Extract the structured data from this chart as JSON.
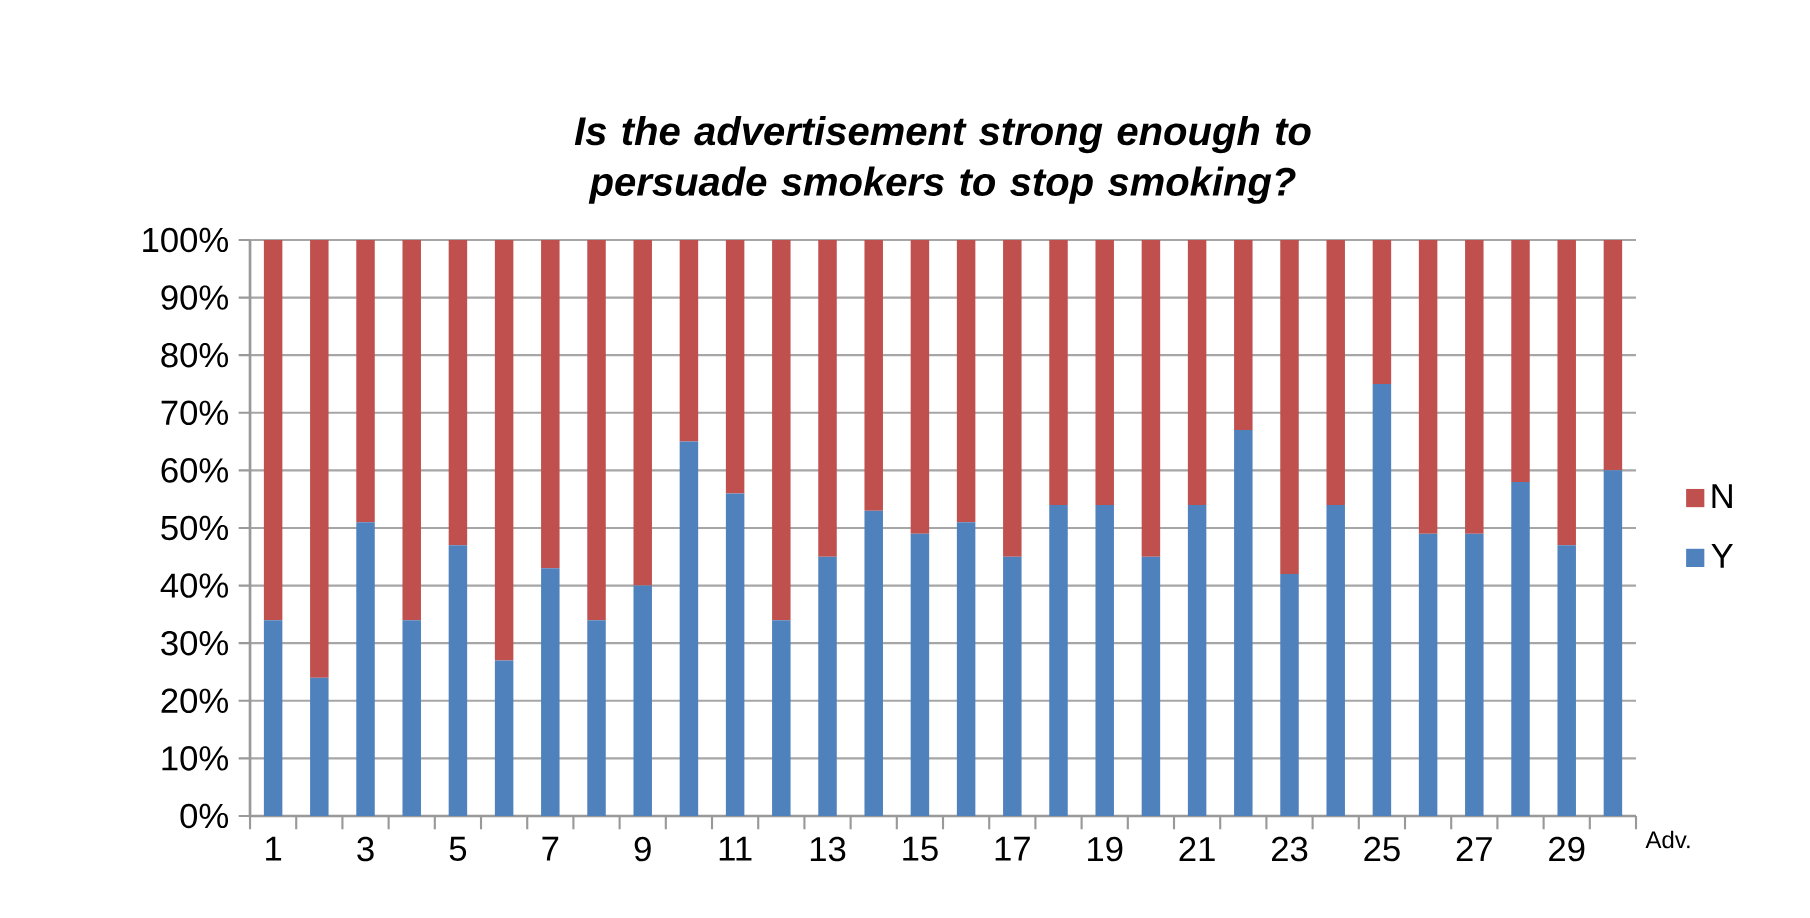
{
  "chart_data": {
    "type": "bar",
    "stacked": true,
    "title": "Is the advertisement strong enough to persuade smokers to stop smoking?",
    "xlabel": "Adv.",
    "categories": [
      "1",
      null,
      "3",
      null,
      "5",
      null,
      "7",
      null,
      "9",
      null,
      "11",
      null,
      "13",
      null,
      "15",
      null,
      "17",
      null,
      "19",
      null,
      "21",
      null,
      "23",
      null,
      "25",
      null,
      "27",
      null,
      "29",
      null
    ],
    "series": [
      {
        "name": "Y",
        "color": "#4f81bd",
        "values": [
          34,
          24,
          51,
          34,
          47,
          27,
          43,
          34,
          40,
          65,
          56,
          34,
          45,
          53,
          49,
          51,
          45,
          54,
          54,
          45,
          54,
          67,
          42,
          54,
          75,
          49,
          49,
          58,
          47,
          60
        ]
      },
      {
        "name": "N",
        "color": "#c0504d",
        "values": [
          66,
          76,
          49,
          66,
          53,
          73,
          57,
          66,
          60,
          35,
          44,
          66,
          55,
          47,
          51,
          49,
          55,
          46,
          46,
          55,
          46,
          33,
          58,
          46,
          25,
          51,
          51,
          42,
          53,
          40
        ]
      }
    ],
    "ylim": [
      0,
      100
    ],
    "yticks": [
      {
        "value": 0,
        "label": "0%"
      },
      {
        "value": 10,
        "label": "10%"
      },
      {
        "value": 20,
        "label": "20%"
      },
      {
        "value": 30,
        "label": "30%"
      },
      {
        "value": 40,
        "label": "40%"
      },
      {
        "value": 50,
        "label": "50%"
      },
      {
        "value": 60,
        "label": "60%"
      },
      {
        "value": 70,
        "label": "70%"
      },
      {
        "value": 80,
        "label": "80%"
      },
      {
        "value": 90,
        "label": "90%"
      },
      {
        "value": 100,
        "label": "100%"
      }
    ],
    "grid": "y",
    "legend": "right"
  }
}
